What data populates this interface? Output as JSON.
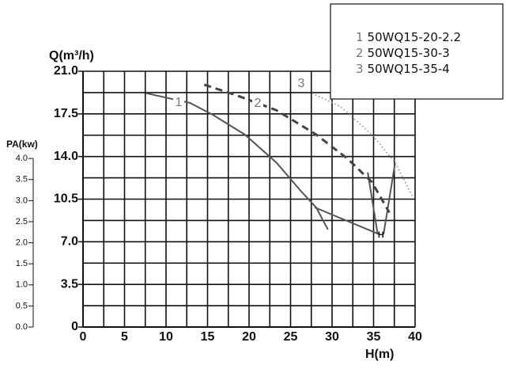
{
  "chart_data": {
    "type": "line",
    "ylabel": "Q(m³/h)",
    "y2label": "PA(kw)",
    "xlabel": "H(m)",
    "xlim": [
      0,
      40
    ],
    "xticks": [
      0,
      5,
      10,
      15,
      20,
      25,
      30,
      35,
      40
    ],
    "ylim": [
      0,
      21
    ],
    "yticks": [
      0,
      3.5,
      {
        "value": 7,
        "label": "7.0"
      },
      10.5,
      {
        "value": 14,
        "label": "14.0"
      },
      17.5,
      {
        "value": 21,
        "label": "21.0"
      }
    ],
    "y2lim": [
      0,
      6.07
    ],
    "y2ticks": [
      {
        "value": 0,
        "label": "0.0"
      },
      0.5,
      {
        "value": 1,
        "label": "1.0"
      },
      1.5,
      {
        "value": 2,
        "label": "2.0"
      },
      2.5,
      {
        "value": 3,
        "label": "3.0"
      },
      3.5,
      {
        "value": 4,
        "label": "4.0"
      }
    ],
    "x_gridlines": [
      2.5,
      5,
      7.5,
      10,
      12.5,
      15,
      17.5,
      20,
      22.5,
      25,
      27.5,
      30,
      32.5,
      35,
      37.5,
      40
    ],
    "y_gridlines": [
      1.75,
      3.5,
      5.25,
      7,
      8.75,
      10.5,
      12.25,
      14,
      15.75,
      17.5,
      19.25,
      21
    ],
    "series": [
      {
        "label": "1",
        "name": "50WQ15-20-2.2",
        "color": "#555555",
        "style": "solid",
        "x": [
          7.6,
          12.9,
          15.7,
          19.5,
          23.3,
          26.2,
          28.1,
          29.5
        ],
        "values": [
          19.2,
          18.4,
          17.4,
          15.8,
          13.5,
          11.2,
          9.8,
          8.0
        ]
      },
      {
        "label": "2",
        "name": "50WQ15-30-3",
        "color": "#444444",
        "style": "dashed",
        "x": [
          14.6,
          18.6,
          23.3,
          28.1,
          31.9,
          34.8,
          36.9
        ],
        "values": [
          19.9,
          19.0,
          17.8,
          15.8,
          13.8,
          11.9,
          9.4
        ]
      },
      {
        "label": "3",
        "name": "50WQ15-35-4",
        "color": "#9a9a9a",
        "style": "dotted",
        "x": [
          27.6,
          31.0,
          34.8,
          37.6,
          39.7
        ],
        "values": [
          19.2,
          18.1,
          15.8,
          13.5,
          10.7
        ]
      }
    ],
    "power_series": [
      {
        "color": "#555555",
        "x": [
          27.9,
          35.7
        ],
        "values": [
          2.84,
          2.2
        ]
      },
      {
        "color": "#555555",
        "x": [
          34.3,
          35.5
        ],
        "values": [
          3.67,
          2.2
        ]
      },
      {
        "color": "#555555",
        "x": [
          37.6,
          36.2
        ],
        "values": [
          3.9,
          2.2
        ]
      }
    ],
    "annotation": "H"
  }
}
